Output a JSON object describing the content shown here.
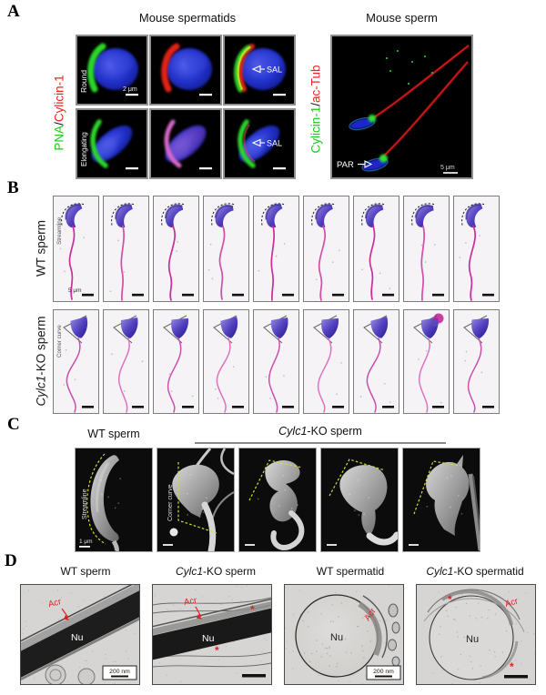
{
  "colors": {
    "stain_green": "#23c623",
    "stain_red": "#e8261f",
    "dapi_blue": "#2433cc",
    "tail_magenta": "#c92e9b",
    "head_violet": "#3a2aa0",
    "sem_yellow": "#d8d832",
    "acr_red": "#e02020",
    "background": "#ffffff"
  },
  "panel_a": {
    "label": "A",
    "spermatids": {
      "title": "Mouse spermatids",
      "stain_green": "PNA",
      "stain_sep": "/",
      "stain_red": "Cylicin-1",
      "row_labels": [
        "Round",
        "Elongating"
      ],
      "scale_bar_text": "2 μm",
      "sal_label": "SAL"
    },
    "sperm": {
      "title": "Mouse sperm",
      "stain_green": "Cylicin-1",
      "stain_sep": "/",
      "stain_red": "ac-Tub",
      "par_label": "PAR",
      "scale_bar_text": "5 μm"
    }
  },
  "panel_b": {
    "label": "B",
    "wt": {
      "row_label": "WT sperm",
      "inset_label": "Streamline",
      "scale_bar_text": "5 μm",
      "image_count": 9
    },
    "ko": {
      "row_label_italic": "Cylc1",
      "row_label_rest": "-KO sperm",
      "inset_label": "Corner curve",
      "image_count": 9
    }
  },
  "panel_c": {
    "label": "C",
    "wt_title": "WT sperm",
    "ko_title_italic": "Cylc1",
    "ko_title_rest": "-KO sperm",
    "wt_inset_label": "Streamline",
    "ko_inset_label": "Corner curve",
    "scale_bar_text": "1 μm",
    "wt_image_count": 1,
    "ko_image_count": 4
  },
  "panel_d": {
    "label": "D",
    "columns": [
      {
        "title_italic": "",
        "title_text": "WT sperm"
      },
      {
        "title_italic": "Cylc1",
        "title_text": "-KO sperm"
      },
      {
        "title_italic": "",
        "title_text": "WT spermatid"
      },
      {
        "title_italic": "Cylc1",
        "title_text": "-KO spermatid"
      }
    ],
    "acr_label": "Acr",
    "nu_label": "Nu",
    "asterisk": "*",
    "scale_bar_text": "200 nm"
  }
}
